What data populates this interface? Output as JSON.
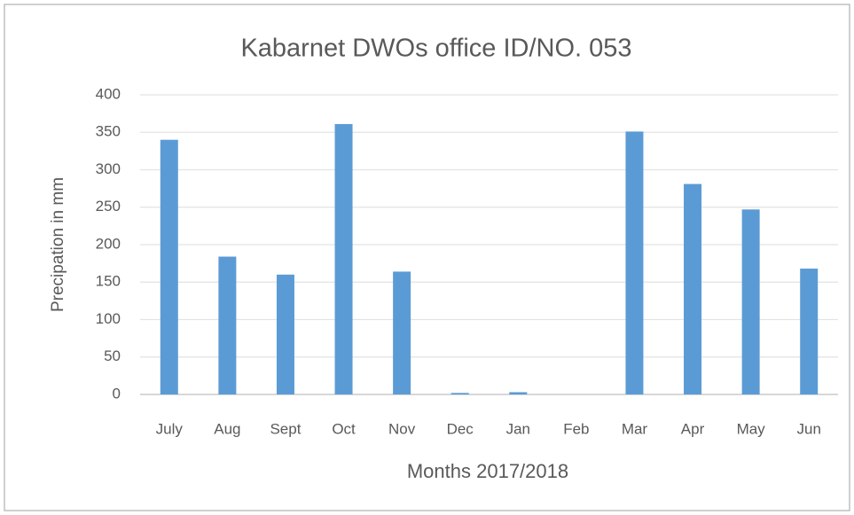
{
  "chart_data": {
    "type": "bar",
    "title": "Kabarnet DWOs office ID/NO. 053",
    "x_label": "Months 2017/2018",
    "y_label": "Precipation in mm",
    "categories": [
      "July",
      "Aug",
      "Sept",
      "Oct",
      "Nov",
      "Dec",
      "Jan",
      "Feb",
      "Mar",
      "Apr",
      "May",
      "Jun"
    ],
    "values": [
      340,
      184,
      160,
      361,
      164,
      2,
      3,
      0,
      351,
      281,
      247,
      168
    ],
    "color": "#5b9bd5",
    "ylim": [
      0,
      400
    ],
    "yticks": [
      0,
      50,
      100,
      150,
      200,
      250,
      300,
      350,
      400
    ],
    "grid": true
  }
}
